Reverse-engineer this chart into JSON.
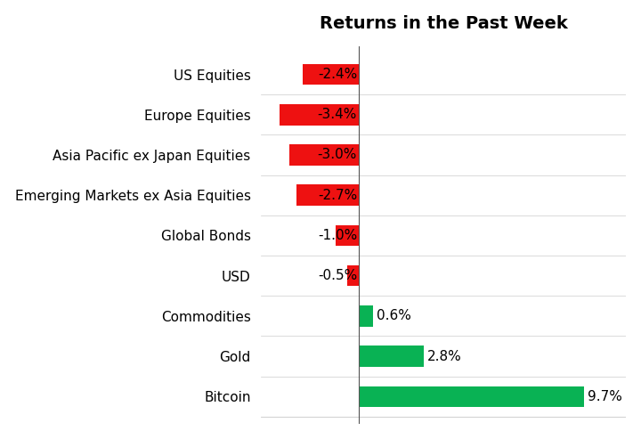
{
  "title": "Returns in the Past Week",
  "title_fontsize": 14,
  "categories": [
    "Bitcoin",
    "Gold",
    "Commodities",
    "USD",
    "Global Bonds",
    "Emerging Markets ex Asia Equities",
    "Asia Pacific ex Japan Equities",
    "Europe Equities",
    "US Equities"
  ],
  "values": [
    9.7,
    2.8,
    0.6,
    -0.5,
    -1.0,
    -2.7,
    -3.0,
    -3.4,
    -2.4
  ],
  "bar_colors": [
    "#09B254",
    "#09B254",
    "#09B254",
    "#EE1111",
    "#EE1111",
    "#EE1111",
    "#EE1111",
    "#EE1111",
    "#EE1111"
  ],
  "label_fontsize": 11,
  "value_fontsize": 11,
  "background_color": "#FFFFFF",
  "xlim": [
    -4.2,
    11.5
  ],
  "bar_height": 0.52
}
